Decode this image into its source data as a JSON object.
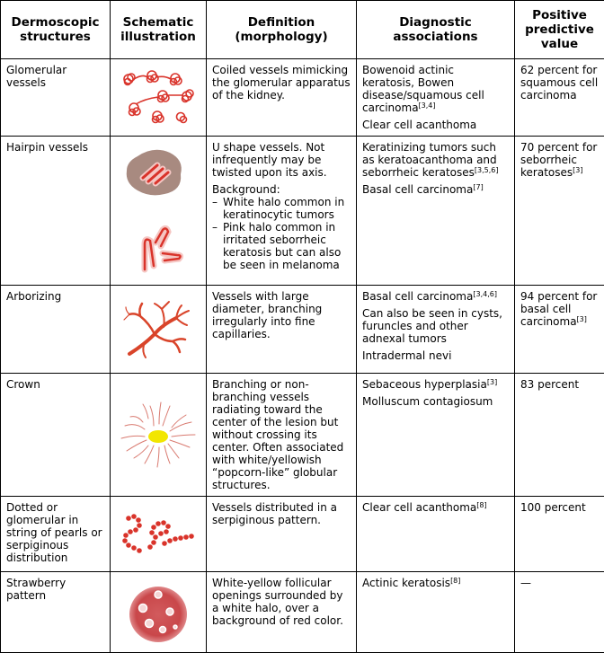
{
  "headers": [
    "Dermoscopic structures",
    "Schematic illustration",
    "Definition (morphology)",
    "Diagnostic associations",
    "Positive predictive value"
  ],
  "rows": [
    {
      "structure": "Glomerular vessels",
      "definition": "Coiled vessels mimicking the glomerular apparatus of the kidney.",
      "associations": [
        {
          "text": "Bowenoid actinic keratosis, Bowen disease/squamous cell carcinoma",
          "ref": "[3,4]"
        },
        {
          "text": "Clear cell acanthoma",
          "ref": ""
        }
      ],
      "ppv": {
        "text": "62 percent for squamous cell carcinoma",
        "ref": ""
      }
    },
    {
      "structure": "Hairpin vessels",
      "definition": "U shape vessels. Not infrequently may be twisted upon its axis.",
      "background_label": "Background:",
      "background_items": [
        "White halo common in keratinocytic tumors",
        "Pink halo common in irritated seborrheic keratosis but can also be seen in melanoma"
      ],
      "associations": [
        {
          "text": "Keratinizing tumors such as keratoacanthoma and seborrheic keratoses",
          "ref": "[3,5,6]"
        },
        {
          "text": "Basal cell carcinoma",
          "ref": "[7]"
        }
      ],
      "ppv": {
        "text": "70 percent for seborrheic keratoses",
        "ref": "[3]"
      }
    },
    {
      "structure": "Arborizing",
      "definition": "Vessels with large diameter, branching irregularly into fine capillaries.",
      "associations": [
        {
          "text": "Basal cell carcinoma",
          "ref": "[3,4,6]"
        },
        {
          "text": "Can also be seen in cysts, furuncles and other adnexal tumors",
          "ref": ""
        },
        {
          "text": "Intradermal nevi",
          "ref": ""
        }
      ],
      "ppv": {
        "text": "94 percent for basal cell carcinoma",
        "ref": "[3]"
      }
    },
    {
      "structure": "Crown",
      "definition": "Branching or non-branching vessels radiating toward the center of the lesion but without crossing its center. Often associated with white/yellowish “popcorn-like” globular structures.",
      "associations": [
        {
          "text": "Sebaceous hyperplasia",
          "ref": "[3]"
        },
        {
          "text": "Molluscum contagiosum",
          "ref": ""
        }
      ],
      "ppv": {
        "text": "83 percent",
        "ref": ""
      }
    },
    {
      "structure": "Dotted or glomerular in string of pearls or serpiginous distribution",
      "definition": "Vessels distributed in a serpiginous pattern.",
      "associations": [
        {
          "text": "Clear cell acanthoma",
          "ref": "[8]"
        }
      ],
      "ppv": {
        "text": "100 percent",
        "ref": ""
      }
    },
    {
      "structure": "Strawberry pattern",
      "definition": "White-yellow follicular openings surrounded by a white halo, over a background of red color.",
      "associations": [
        {
          "text": "Actinic keratosis",
          "ref": "[8]"
        }
      ],
      "ppv": {
        "text": "—",
        "ref": ""
      }
    }
  ],
  "colors": {
    "vessel_red": "#d9332a",
    "lesion_brown": "#a88a80",
    "crown_yellow": "#f2e600",
    "strawberry_red": "#c9474a"
  },
  "icons": [
    "glomerular-vessels-icon",
    "hairpin-vessels-icon",
    "arborizing-vessels-icon",
    "crown-vessels-icon",
    "string-of-pearls-icon",
    "strawberry-pattern-icon"
  ]
}
